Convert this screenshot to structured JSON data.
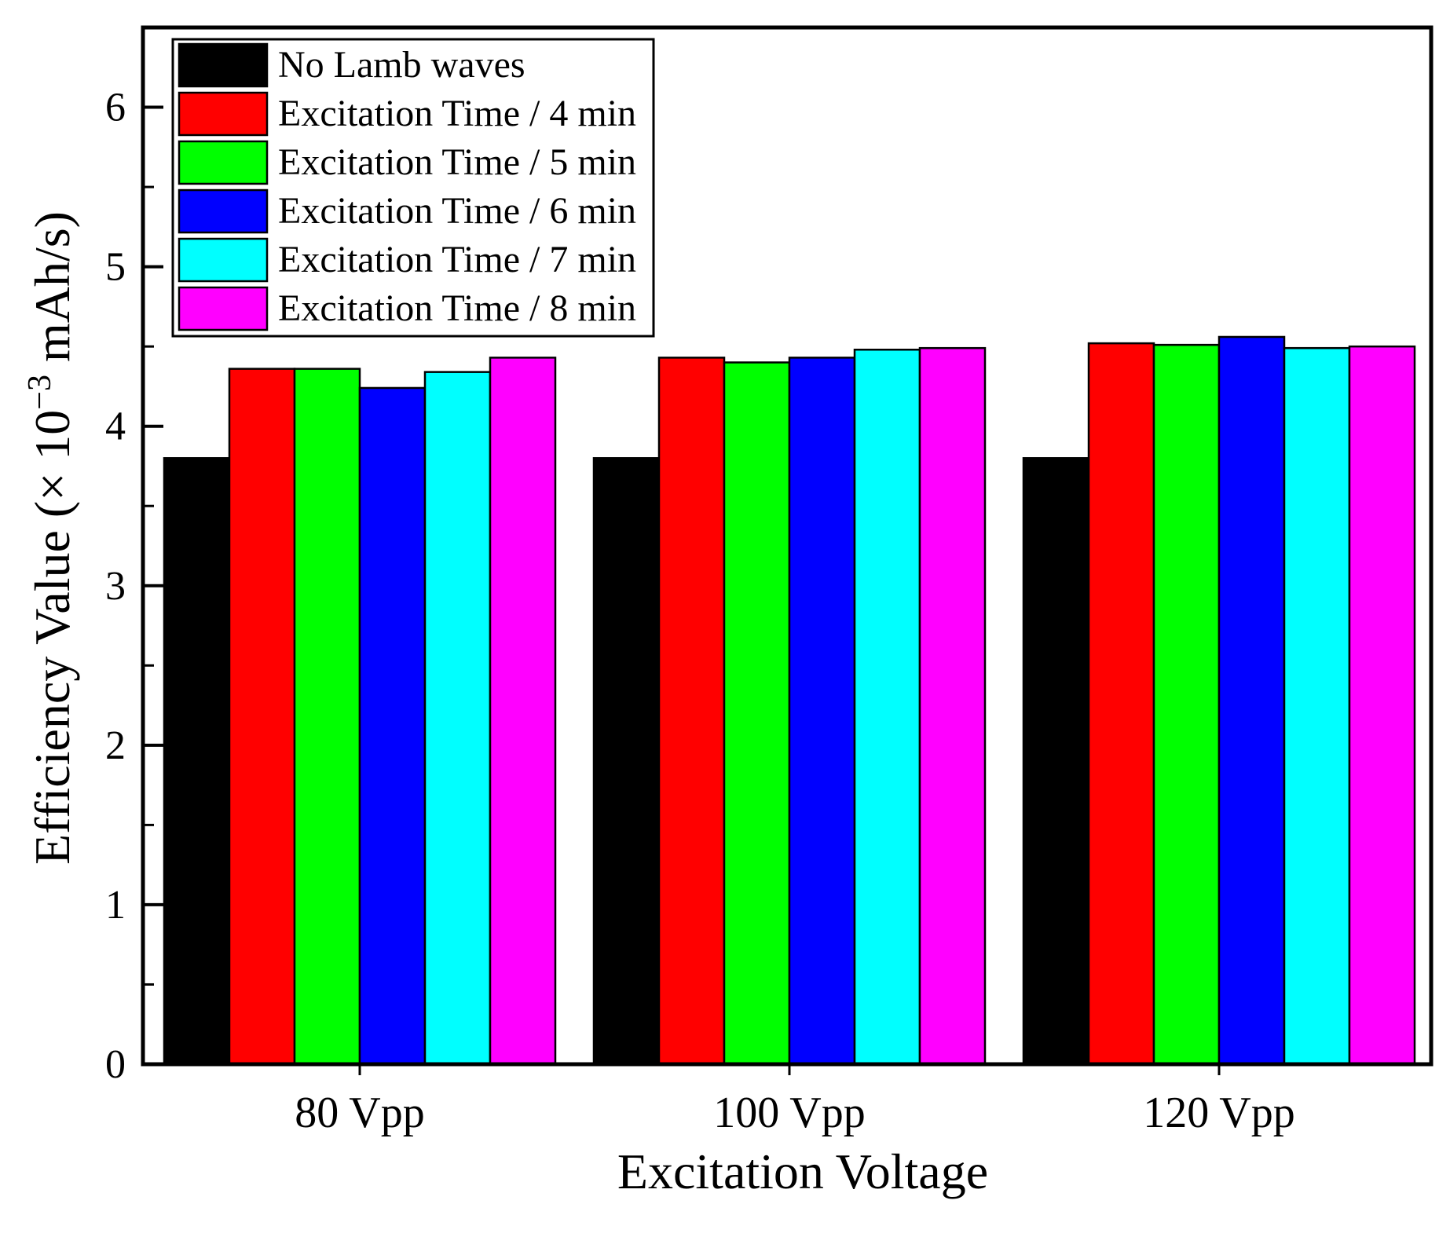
{
  "chart_data": {
    "type": "bar",
    "title": "",
    "xlabel": "Excitation Voltage",
    "ylabel_main": "Efficiency Value (× 10",
    "ylabel_exponent": "−3",
    "ylabel_unit": " mAh/s)",
    "ylim": [
      0,
      6.5
    ],
    "yticks": [
      0,
      1,
      2,
      3,
      4,
      5,
      6
    ],
    "ytick_labels": [
      "0",
      "1",
      "2",
      "3",
      "4",
      "5",
      "6"
    ],
    "categories": [
      "80 Vpp",
      "100 Vpp",
      "120 Vpp"
    ],
    "legend_position": "top-left",
    "grid": false,
    "series": [
      {
        "name": "No Lamb waves",
        "color": "#000000",
        "values": [
          3.8,
          3.8,
          3.8
        ]
      },
      {
        "name": "Excitation Time / 4 min",
        "color": "#ff0000",
        "values": [
          4.36,
          4.43,
          4.52
        ]
      },
      {
        "name": "Excitation Time / 5 min",
        "color": "#00ff00",
        "values": [
          4.36,
          4.4,
          4.51
        ]
      },
      {
        "name": "Excitation Time / 6 min",
        "color": "#0000ff",
        "values": [
          4.24,
          4.43,
          4.56
        ]
      },
      {
        "name": "Excitation Time / 7 min",
        "color": "#00ffff",
        "values": [
          4.34,
          4.48,
          4.49
        ]
      },
      {
        "name": "Excitation Time / 8 min",
        "color": "#ff00ff",
        "values": [
          4.43,
          4.49,
          4.5
        ]
      }
    ]
  }
}
